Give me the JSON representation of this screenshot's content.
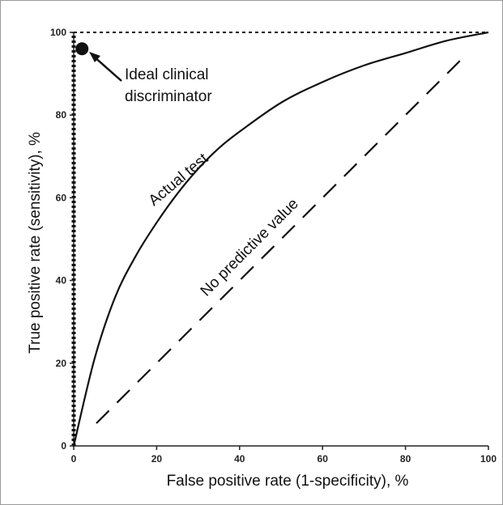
{
  "chart_data": {
    "type": "line",
    "xlabel": "False positive rate (1-specificity), %",
    "ylabel": "True positive rate (sensitivity), %",
    "xlim": [
      0,
      100
    ],
    "ylim": [
      0,
      100
    ],
    "xticks": [
      0,
      20,
      40,
      60,
      80,
      100
    ],
    "yticks": [
      0,
      20,
      40,
      60,
      80,
      100
    ],
    "grid": false,
    "series": [
      {
        "name": "Actual test",
        "style": "solid",
        "x": [
          0,
          5,
          10,
          15,
          20,
          25,
          30,
          35,
          40,
          50,
          60,
          70,
          80,
          90,
          100
        ],
        "y": [
          0,
          21,
          36,
          46,
          54,
          61,
          67,
          72,
          76,
          83,
          88,
          92,
          95,
          98,
          100
        ]
      },
      {
        "name": "No predictive value",
        "style": "dashed",
        "x": [
          0,
          100
        ],
        "y": [
          0,
          100
        ]
      },
      {
        "name": "Ideal clinical discriminator",
        "style": "dotted",
        "x": [
          0,
          0,
          100
        ],
        "y": [
          0,
          100,
          100
        ]
      }
    ],
    "annotations": {
      "ideal_line1": "Ideal clinical",
      "ideal_line2": "discriminator",
      "actual": "Actual test",
      "none": "No predictive value"
    },
    "ideal_point": {
      "x": 2,
      "y": 98
    }
  }
}
